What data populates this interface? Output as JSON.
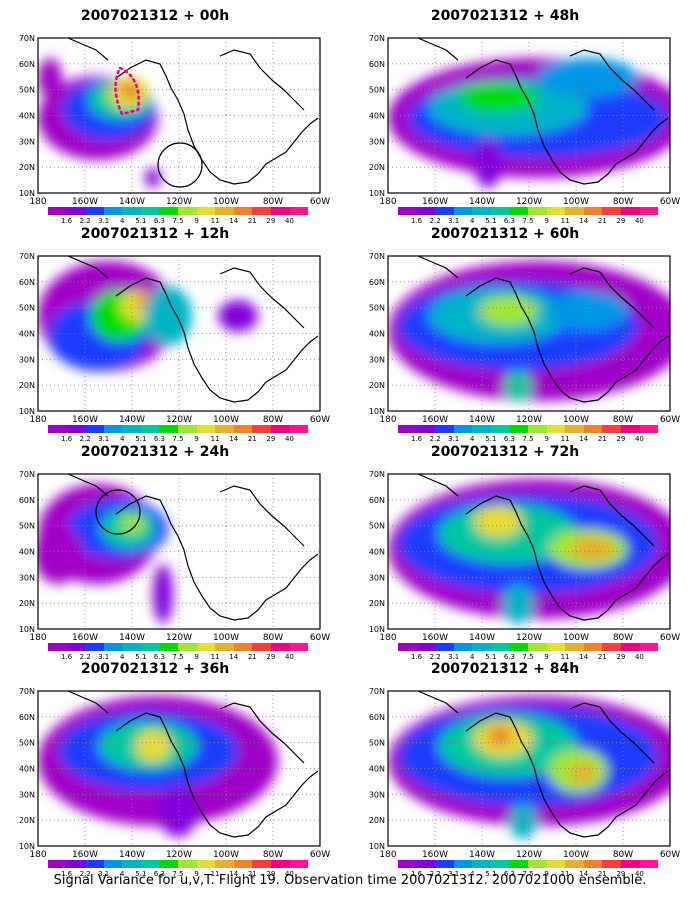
{
  "panels": [
    {
      "title": "2007021312 + 00h",
      "col": 0,
      "row": 0,
      "circle": [
        142,
        127
      ],
      "contour": true
    },
    {
      "title": "2007021312 + 48h",
      "col": 1,
      "row": 0
    },
    {
      "title": "2007021312 + 12h",
      "col": 0,
      "row": 1
    },
    {
      "title": "2007021312 + 60h",
      "col": 1,
      "row": 1
    },
    {
      "title": "2007021312 + 24h",
      "col": 0,
      "row": 2,
      "circle": [
        80,
        38
      ]
    },
    {
      "title": "2007021312 + 72h",
      "col": 1,
      "row": 2
    },
    {
      "title": "2007021312 + 36h",
      "col": 0,
      "row": 3
    },
    {
      "title": "2007021312 + 84h",
      "col": 1,
      "row": 3
    }
  ],
  "axes": {
    "lat_labels": [
      "70N",
      "60N",
      "50N",
      "40N",
      "30N",
      "20N",
      "10N"
    ],
    "lon_labels": [
      "180",
      "160W",
      "140W",
      "120W",
      "100W",
      "80W",
      "60W"
    ]
  },
  "colorbar": {
    "labels": [
      "1.6",
      "2.2",
      "3.1",
      "4",
      "5.1",
      "6.3",
      "7.5",
      "9",
      "11",
      "14",
      "21",
      "29",
      "40"
    ],
    "colors": [
      "#a000c8",
      "#8200dc",
      "#1e3cff",
      "#0096e6",
      "#00b4c8",
      "#00c8a0",
      "#00dc00",
      "#a0e632",
      "#e6dc32",
      "#e6af2d",
      "#f08228",
      "#fa3c3c",
      "#f00082",
      "#ff1493"
    ]
  },
  "caption": "Signal Variance for u,v,T. Flight 19. Observation time 2007021312. 2007021000 ensemble."
}
